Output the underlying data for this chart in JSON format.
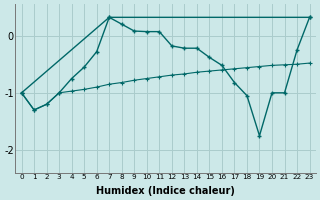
{
  "xlabel": "Humidex (Indice chaleur)",
  "background_color": "#cce8e8",
  "grid_color": "#aacccc",
  "line_color": "#006868",
  "xlim": [
    -0.5,
    23.5
  ],
  "ylim": [
    -2.4,
    0.55
  ],
  "yticks": [
    -2,
    -1,
    0
  ],
  "xticks": [
    0,
    1,
    2,
    3,
    4,
    5,
    6,
    7,
    8,
    9,
    10,
    11,
    12,
    13,
    14,
    15,
    16,
    17,
    18,
    19,
    20,
    21,
    22,
    23
  ],
  "line1_x": [
    0,
    1,
    2,
    3,
    4,
    5,
    6,
    7,
    8,
    9,
    10,
    11,
    12,
    13,
    14,
    15,
    16,
    17,
    18,
    19,
    20,
    21,
    22,
    23
  ],
  "line1_y": [
    -1.0,
    -1.3,
    -1.2,
    -1.0,
    -0.75,
    -0.55,
    -0.28,
    0.32,
    0.2,
    0.08,
    0.07,
    0.07,
    -0.18,
    -0.22,
    -0.22,
    -0.38,
    -0.52,
    -0.82,
    -1.05,
    -1.75,
    -1.0,
    -1.0,
    -0.25,
    0.32
  ],
  "line2_x": [
    0,
    7,
    23
  ],
  "line2_y": [
    -1.0,
    0.32,
    0.32
  ],
  "line3_x": [
    0,
    1,
    2,
    3,
    4,
    5,
    6,
    7,
    8,
    9,
    10,
    11,
    12,
    13,
    14,
    15,
    16,
    17,
    18,
    19,
    20,
    21,
    22,
    23
  ],
  "line3_y": [
    -1.0,
    -1.3,
    -1.2,
    -1.0,
    -0.97,
    -0.94,
    -0.9,
    -0.85,
    -0.82,
    -0.78,
    -0.75,
    -0.72,
    -0.69,
    -0.67,
    -0.64,
    -0.62,
    -0.6,
    -0.58,
    -0.56,
    -0.54,
    -0.52,
    -0.51,
    -0.5,
    -0.48
  ]
}
